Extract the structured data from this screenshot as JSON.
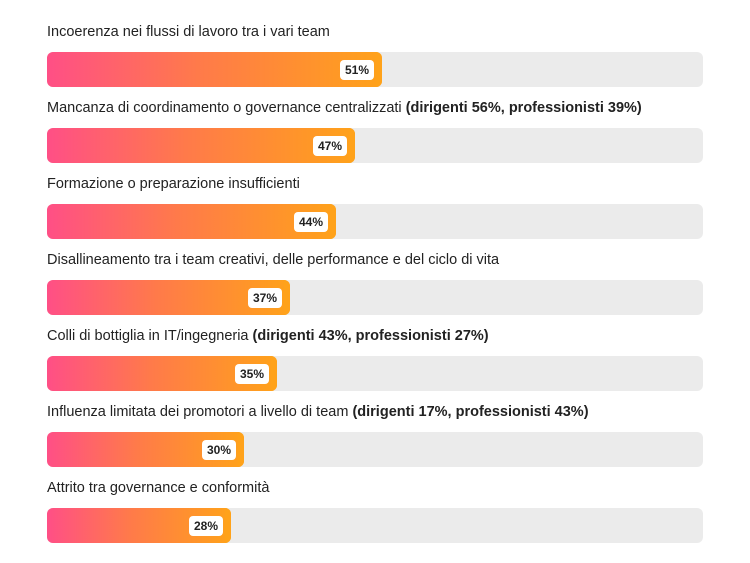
{
  "chart_data": {
    "type": "bar",
    "orientation": "horizontal",
    "xlim": [
      0,
      100
    ],
    "grid": false,
    "categories": [
      "Incoerenza nei flussi di lavoro tra i vari team",
      "Mancanza di coordinamento o governance centralizzati",
      "Formazione o preparazione insufficienti",
      "Disallineamento tra i team creativi, delle performance e del ciclo di vita",
      "Colli di bottiglia in IT/ingegneria",
      "Influenza limitata dei promotori a livello di team",
      "Attrito tra governance e conformità"
    ],
    "notes": [
      "",
      "(dirigenti 56%, professionisti 39%)",
      "",
      "",
      "(dirigenti 43%, professionisti 27%)",
      "(dirigenti 17%, professionisti 43%)",
      ""
    ],
    "values": [
      51,
      47,
      44,
      37,
      35,
      30,
      28
    ],
    "value_labels": [
      "51%",
      "47%",
      "44%",
      "37%",
      "35%",
      "30%",
      "28%"
    ],
    "colors": {
      "gradient_start": "#ff4f86",
      "gradient_end": "#ffa21a",
      "track": "#ebebeb"
    }
  }
}
